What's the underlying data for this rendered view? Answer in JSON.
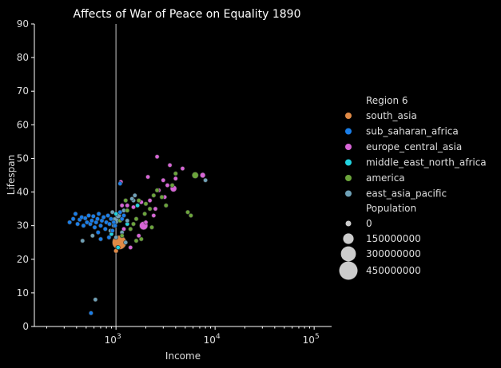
{
  "chart_data": {
    "type": "scatter",
    "title": "Affects of War of Peace on Equality 1890",
    "xlabel": "Income",
    "ylabel": "Lifespan",
    "xscale": "log",
    "xlim": [
      150,
      150000
    ],
    "ylim": [
      0,
      90
    ],
    "xticks": [
      {
        "value": 1000,
        "base": "10",
        "exp": "3"
      },
      {
        "value": 10000,
        "base": "10",
        "exp": "4"
      },
      {
        "value": 100000,
        "base": "10",
        "exp": "5"
      }
    ],
    "yticks": [
      0,
      10,
      20,
      30,
      40,
      50,
      60,
      70,
      80,
      90
    ],
    "reference_line": {
      "x": 1000,
      "color": "#888888"
    },
    "grid": false,
    "colors": {
      "background": "#000000",
      "axis": "#ffffff",
      "text": "#dddddd",
      "point_edge": "#333333"
    },
    "legend": {
      "position": "right",
      "hue_title": "Region 6",
      "size_title": "Population",
      "size_entries": [
        {
          "label": "0",
          "value": 0
        },
        {
          "label": "150000000",
          "value": 150000000
        },
        {
          "label": "300000000",
          "value": 300000000
        },
        {
          "label": "450000000",
          "value": 450000000
        }
      ]
    },
    "series": [
      {
        "name": "south_asia",
        "color": "#e08a46",
        "points": [
          {
            "x": 1000,
            "y": 22.5,
            "size": 30000000
          },
          {
            "x": 1080,
            "y": 25,
            "size": 290000000
          },
          {
            "x": 1040,
            "y": 23.5,
            "size": 20000000
          }
        ]
      },
      {
        "name": "sub_saharan_africa",
        "color": "#1a7ee8",
        "points": [
          {
            "x": 340,
            "y": 31,
            "size": 2000000
          },
          {
            "x": 370,
            "y": 32,
            "size": 2000000
          },
          {
            "x": 390,
            "y": 33.5,
            "size": 2000000
          },
          {
            "x": 410,
            "y": 30.5,
            "size": 2000000
          },
          {
            "x": 430,
            "y": 31.8,
            "size": 2000000
          },
          {
            "x": 450,
            "y": 32.5,
            "size": 2000000
          },
          {
            "x": 470,
            "y": 30,
            "size": 2000000
          },
          {
            "x": 490,
            "y": 32.2,
            "size": 2000000
          },
          {
            "x": 510,
            "y": 31,
            "size": 2000000
          },
          {
            "x": 530,
            "y": 33,
            "size": 2000000
          },
          {
            "x": 550,
            "y": 30.5,
            "size": 2000000
          },
          {
            "x": 570,
            "y": 31.5,
            "size": 2000000
          },
          {
            "x": 590,
            "y": 32.8,
            "size": 2000000
          },
          {
            "x": 610,
            "y": 29.5,
            "size": 2000000
          },
          {
            "x": 630,
            "y": 31,
            "size": 2000000
          },
          {
            "x": 650,
            "y": 32,
            "size": 2000000
          },
          {
            "x": 670,
            "y": 33.5,
            "size": 2000000
          },
          {
            "x": 700,
            "y": 30,
            "size": 2000000
          },
          {
            "x": 720,
            "y": 31.5,
            "size": 2000000
          },
          {
            "x": 750,
            "y": 32.5,
            "size": 2000000
          },
          {
            "x": 780,
            "y": 29,
            "size": 2000000
          },
          {
            "x": 800,
            "y": 31,
            "size": 2000000
          },
          {
            "x": 830,
            "y": 33,
            "size": 2000000
          },
          {
            "x": 860,
            "y": 30.5,
            "size": 2000000
          },
          {
            "x": 890,
            "y": 32,
            "size": 2000000
          },
          {
            "x": 920,
            "y": 28.5,
            "size": 2000000
          },
          {
            "x": 950,
            "y": 31,
            "size": 2000000
          },
          {
            "x": 980,
            "y": 30,
            "size": 2000000
          },
          {
            "x": 1100,
            "y": 34,
            "size": 2000000
          },
          {
            "x": 1150,
            "y": 32,
            "size": 2000000
          },
          {
            "x": 1200,
            "y": 33,
            "size": 2000000
          },
          {
            "x": 850,
            "y": 26.5,
            "size": 2000000
          },
          {
            "x": 700,
            "y": 26,
            "size": 2000000
          },
          {
            "x": 660,
            "y": 28,
            "size": 2000000
          },
          {
            "x": 1100,
            "y": 42.5,
            "size": 2000000
          },
          {
            "x": 560,
            "y": 4,
            "size": 2000000
          }
        ]
      },
      {
        "name": "europe_central_asia",
        "color": "#d765d6",
        "points": [
          {
            "x": 2600,
            "y": 50.5,
            "size": 3000000
          },
          {
            "x": 3500,
            "y": 48,
            "size": 5000000
          },
          {
            "x": 4700,
            "y": 47,
            "size": 5000000
          },
          {
            "x": 7500,
            "y": 45,
            "size": 40000000
          },
          {
            "x": 4000,
            "y": 44,
            "size": 5000000
          },
          {
            "x": 3000,
            "y": 43.5,
            "size": 5000000
          },
          {
            "x": 3300,
            "y": 42,
            "size": 5000000
          },
          {
            "x": 3800,
            "y": 41,
            "size": 60000000
          },
          {
            "x": 2700,
            "y": 40.5,
            "size": 5000000
          },
          {
            "x": 3100,
            "y": 38.5,
            "size": 20000000
          },
          {
            "x": 2200,
            "y": 37.5,
            "size": 5000000
          },
          {
            "x": 1800,
            "y": 37,
            "size": 5000000
          },
          {
            "x": 1500,
            "y": 35.5,
            "size": 5000000
          },
          {
            "x": 1300,
            "y": 36,
            "size": 5000000
          },
          {
            "x": 2500,
            "y": 35,
            "size": 5000000
          },
          {
            "x": 2400,
            "y": 33,
            "size": 5000000
          },
          {
            "x": 2000,
            "y": 31,
            "size": 5000000
          },
          {
            "x": 1900,
            "y": 30,
            "size": 100000000
          },
          {
            "x": 1700,
            "y": 27,
            "size": 5000000
          },
          {
            "x": 1400,
            "y": 23.5,
            "size": 5000000
          },
          {
            "x": 1150,
            "y": 36,
            "size": 5000000
          },
          {
            "x": 1120,
            "y": 43,
            "size": 3000000
          },
          {
            "x": 1200,
            "y": 29,
            "size": 5000000
          },
          {
            "x": 2100,
            "y": 44.5,
            "size": 5000000
          }
        ]
      },
      {
        "name": "middle_east_north_africa",
        "color": "#22d3e0",
        "points": [
          {
            "x": 1050,
            "y": 23.5,
            "size": 10000000
          },
          {
            "x": 1000,
            "y": 33.5,
            "size": 5000000
          },
          {
            "x": 1650,
            "y": 36,
            "size": 3000000
          },
          {
            "x": 1300,
            "y": 30.5,
            "size": 5000000
          },
          {
            "x": 900,
            "y": 27.5,
            "size": 5000000
          }
        ]
      },
      {
        "name": "america",
        "color": "#6ba43b",
        "points": [
          {
            "x": 6300,
            "y": 45,
            "size": 60000000
          },
          {
            "x": 4000,
            "y": 45.5,
            "size": 3000000
          },
          {
            "x": 5300,
            "y": 34,
            "size": 3000000
          },
          {
            "x": 5700,
            "y": 33,
            "size": 3000000
          },
          {
            "x": 3700,
            "y": 42,
            "size": 3000000
          },
          {
            "x": 2900,
            "y": 38.5,
            "size": 3000000
          },
          {
            "x": 2400,
            "y": 39,
            "size": 3000000
          },
          {
            "x": 2200,
            "y": 35,
            "size": 3000000
          },
          {
            "x": 2000,
            "y": 36.5,
            "size": 3000000
          },
          {
            "x": 1700,
            "y": 37.5,
            "size": 3000000
          },
          {
            "x": 1600,
            "y": 32,
            "size": 3000000
          },
          {
            "x": 1500,
            "y": 30.5,
            "size": 3000000
          },
          {
            "x": 1400,
            "y": 29,
            "size": 3000000
          },
          {
            "x": 1300,
            "y": 34.5,
            "size": 3000000
          },
          {
            "x": 1250,
            "y": 37.5,
            "size": 3000000
          },
          {
            "x": 1150,
            "y": 27,
            "size": 3000000
          },
          {
            "x": 1800,
            "y": 26,
            "size": 3000000
          },
          {
            "x": 2300,
            "y": 29.5,
            "size": 3000000
          },
          {
            "x": 1950,
            "y": 33.5,
            "size": 3000000
          },
          {
            "x": 2600,
            "y": 40.5,
            "size": 3000000
          },
          {
            "x": 3200,
            "y": 36,
            "size": 3000000
          },
          {
            "x": 1600,
            "y": 25.5,
            "size": 3000000
          },
          {
            "x": 1100,
            "y": 31.5,
            "size": 3000000
          }
        ]
      },
      {
        "name": "east_asia_pacific",
        "color": "#6fa1b7",
        "points": [
          {
            "x": 8000,
            "y": 43.5,
            "size": 3000000
          },
          {
            "x": 1050,
            "y": 33,
            "size": 50000000
          },
          {
            "x": 980,
            "y": 31.5,
            "size": 80000000
          },
          {
            "x": 950,
            "y": 30,
            "size": 20000000
          },
          {
            "x": 920,
            "y": 34,
            "size": 5000000
          },
          {
            "x": 1500,
            "y": 37.5,
            "size": 5000000
          },
          {
            "x": 1450,
            "y": 38,
            "size": 5000000
          },
          {
            "x": 1550,
            "y": 39,
            "size": 5000000
          },
          {
            "x": 1150,
            "y": 28,
            "size": 5000000
          },
          {
            "x": 1250,
            "y": 25,
            "size": 5000000
          },
          {
            "x": 1000,
            "y": 26.5,
            "size": 5000000
          },
          {
            "x": 880,
            "y": 28.5,
            "size": 5000000
          },
          {
            "x": 580,
            "y": 27,
            "size": 5000000
          },
          {
            "x": 460,
            "y": 25.5,
            "size": 5000000
          },
          {
            "x": 620,
            "y": 8,
            "size": 2000000
          },
          {
            "x": 1300,
            "y": 31.5,
            "size": 5000000
          },
          {
            "x": 1200,
            "y": 34.5,
            "size": 5000000
          }
        ]
      }
    ]
  }
}
